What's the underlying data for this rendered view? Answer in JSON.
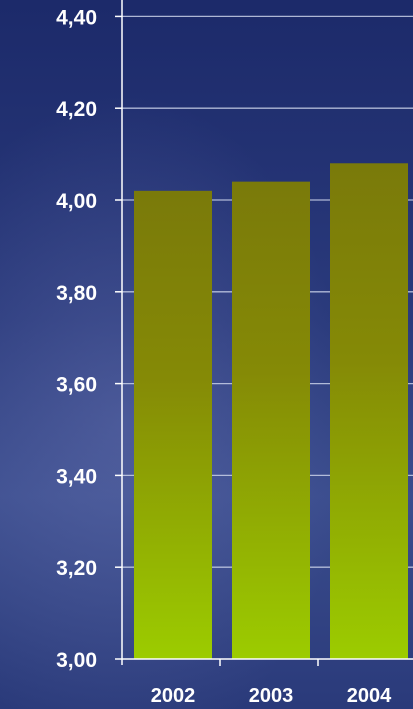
{
  "chart_data": {
    "type": "bar",
    "title": "",
    "xlabel": "",
    "ylabel": "",
    "categories": [
      "2002",
      "2003",
      "2004"
    ],
    "values": [
      4.02,
      4.04,
      4.08
    ],
    "ylim": [
      3.0,
      4.45
    ],
    "yticks": [
      "3,00",
      "3,20",
      "3,40",
      "3,60",
      "3,80",
      "4,00",
      "4,20",
      "4,40"
    ],
    "ytick_values": [
      3.0,
      3.2,
      3.4,
      3.6,
      3.8,
      4.0,
      4.2,
      4.4
    ],
    "grid": true,
    "legend": "none",
    "colors": {
      "bar_top": "#7a7a0a",
      "bar_bottom": "#9ccc00",
      "grid": "#c8d0e8",
      "axis": "#ffffff",
      "text": "#ffffff"
    }
  }
}
